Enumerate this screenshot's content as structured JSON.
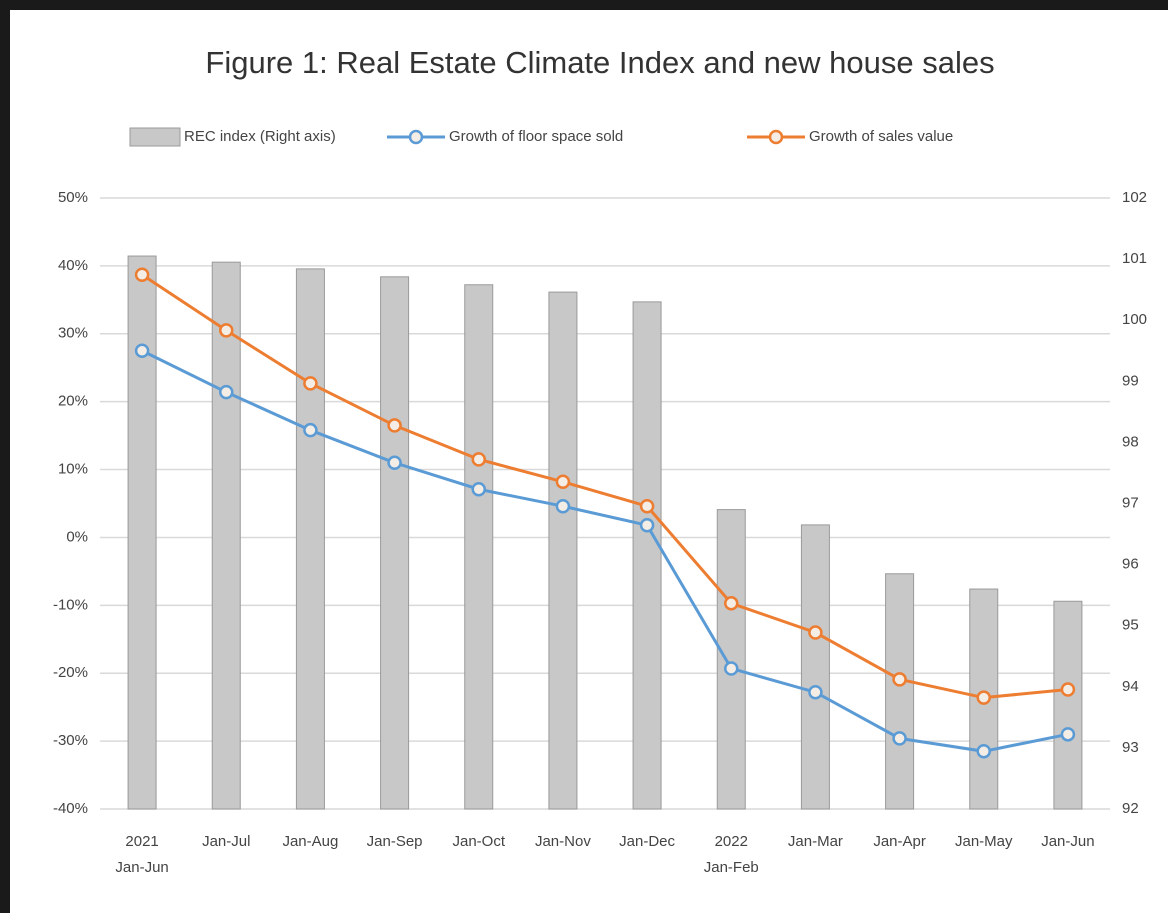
{
  "chart_data": {
    "type": "bar",
    "title": "Figure 1: Real Estate Climate Index and new house sales",
    "categories": [
      "2021\nJan-Jun",
      "Jan-Jul",
      "Jan-Aug",
      "Jan-Sep",
      "Jan-Oct",
      "Jan-Nov",
      "Jan-Dec",
      "2022\nJan-Feb",
      "Jan-Mar",
      "Jan-Apr",
      "Jan-May",
      "Jan-Jun"
    ],
    "series": [
      {
        "name": "REC index (Right axis)",
        "type": "bar",
        "axis": "y2",
        "color": "#c8c8c8",
        "values": [
          101.05,
          100.95,
          100.84,
          100.71,
          100.58,
          100.46,
          100.3,
          96.9,
          96.65,
          95.85,
          95.6,
          95.4
        ]
      },
      {
        "name": "Growth of floor space sold",
        "type": "line",
        "color": "#5b9bd5",
        "values": [
          27.5,
          21.4,
          15.8,
          11.0,
          7.1,
          4.6,
          1.8,
          -19.3,
          -22.8,
          -29.6,
          -31.5,
          -29.0
        ]
      },
      {
        "name": "Growth of sales value",
        "type": "line",
        "color": "#ed7d31",
        "values": [
          38.7,
          30.5,
          22.7,
          16.5,
          11.5,
          8.2,
          4.6,
          -9.7,
          -14.0,
          -20.9,
          -23.6,
          -22.4
        ]
      }
    ],
    "ylim": [
      -40,
      50
    ],
    "yticks": [
      {
        "value": -40,
        "label": "-40%"
      },
      {
        "value": -30,
        "label": "-30%"
      },
      {
        "value": -20,
        "label": "-20%"
      },
      {
        "value": -10,
        "label": "-10%"
      },
      {
        "value": 0,
        "label": "0%"
      },
      {
        "value": 10,
        "label": "10%"
      },
      {
        "value": 20,
        "label": "20%"
      },
      {
        "value": 30,
        "label": "30%"
      },
      {
        "value": 40,
        "label": "40%"
      },
      {
        "value": 50,
        "label": "50%"
      }
    ],
    "y2lim": [
      92,
      102
    ],
    "y2ticks": [
      92,
      93,
      94,
      95,
      96,
      97,
      98,
      99,
      100,
      101,
      102
    ],
    "grid": true,
    "legend": "top"
  }
}
